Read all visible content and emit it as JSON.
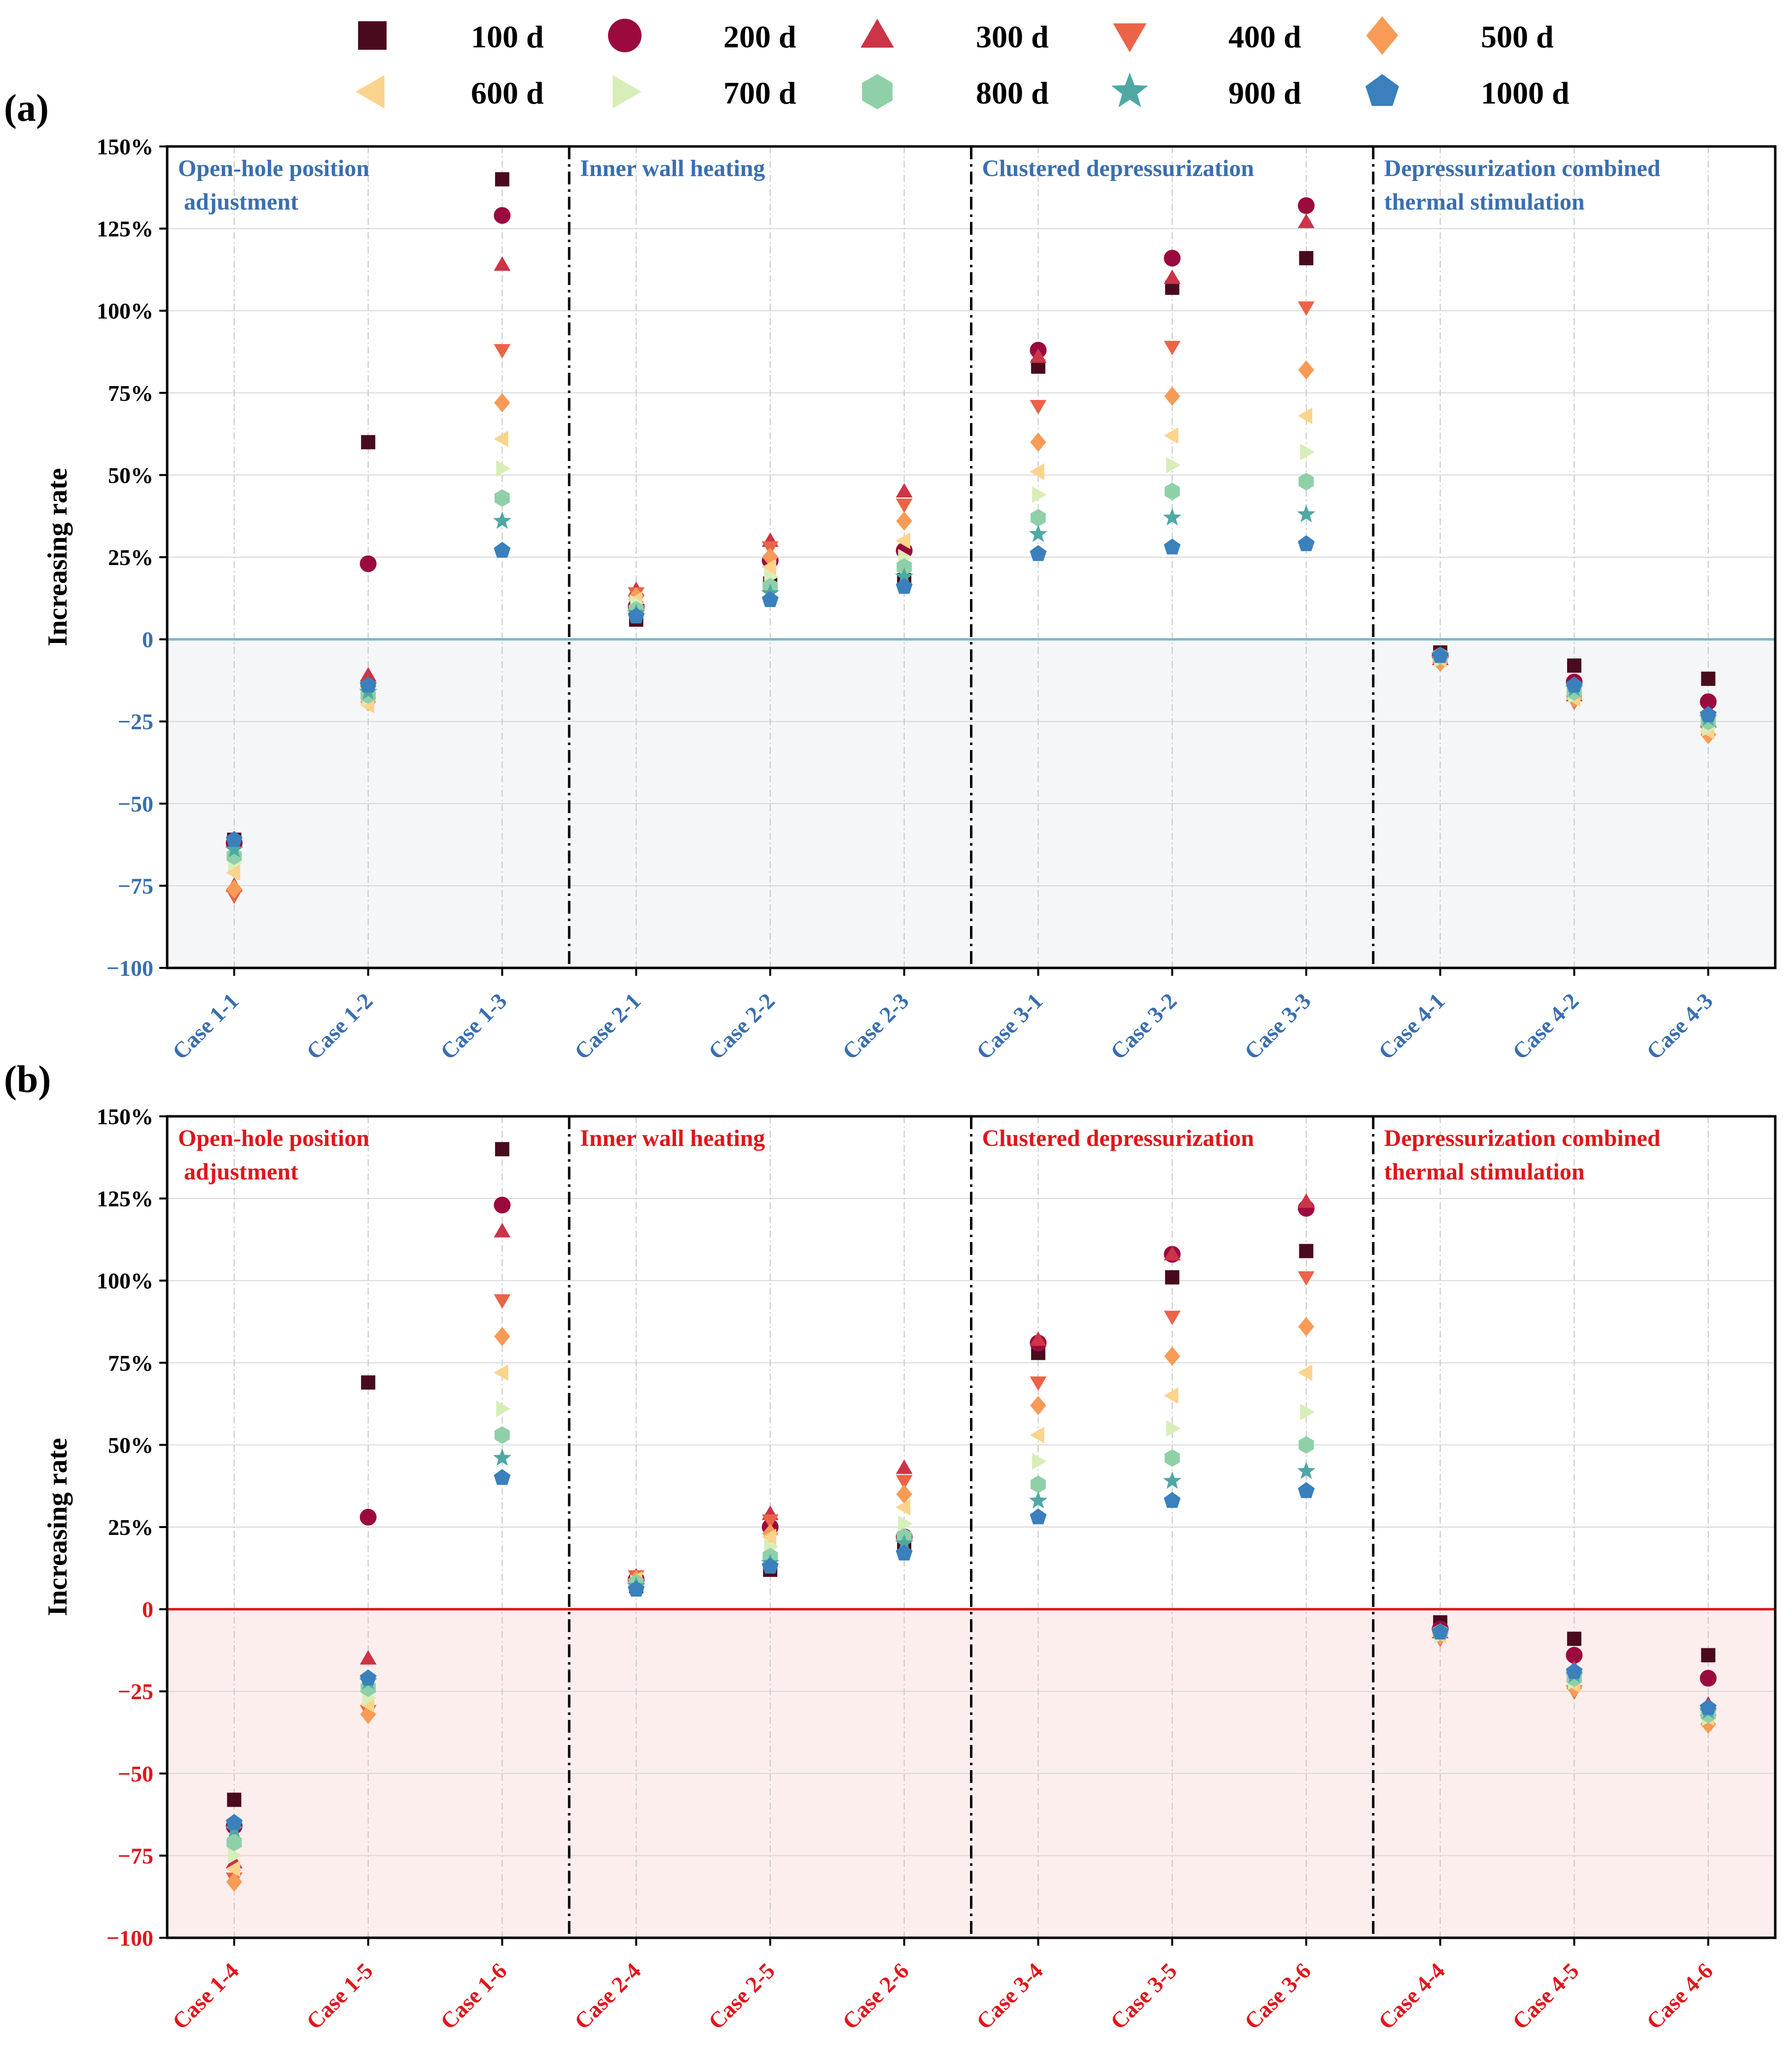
{
  "legend": [
    {
      "label": "100 d",
      "marker": "square",
      "color": "#4a0a1e"
    },
    {
      "label": "200 d",
      "marker": "circle",
      "color": "#9b0a3e"
    },
    {
      "label": "300 d",
      "marker": "triangle-up",
      "color": "#cc3447"
    },
    {
      "label": "400 d",
      "marker": "triangle-down",
      "color": "#ec6347"
    },
    {
      "label": "500 d",
      "marker": "diamond",
      "color": "#f79b56"
    },
    {
      "label": "600 d",
      "marker": "triangle-left",
      "color": "#fad48d"
    },
    {
      "label": "700 d",
      "marker": "triangle-right",
      "color": "#d8eeb8"
    },
    {
      "label": "800 d",
      "marker": "hexagon",
      "color": "#8fd0a8"
    },
    {
      "label": "900 d",
      "marker": "star",
      "color": "#4fa8a4"
    },
    {
      "label": "1000 d",
      "marker": "pentagon",
      "color": "#3a80bd"
    }
  ],
  "chart_data": [
    {
      "panel_label": "(a)",
      "type": "scatter",
      "ylabel": "Increasing rate",
      "ylim": [
        -100,
        150
      ],
      "yticks": [
        150,
        125,
        100,
        75,
        50,
        25,
        0,
        -25,
        -50,
        -75,
        -100
      ],
      "ytick_labels": [
        "150%",
        "125%",
        "100%",
        "75%",
        "50%",
        "25%",
        "0",
        "−25",
        "−50",
        "−75",
        "−100"
      ],
      "ytick_color_positive": "#000000",
      "ytick_color_negative": "#3a6fb0",
      "categories": [
        "Case 1-1",
        "Case 1-2",
        "Case 1-3",
        "Case 2-1",
        "Case 2-2",
        "Case 2-3",
        "Case 3-1",
        "Case 3-2",
        "Case 3-3",
        "Case 4-1",
        "Case 4-2",
        "Case 4-3"
      ],
      "xtick_color": "#3a6fb0",
      "section_color": "#3a6fb0",
      "zero_line_color": "#7ab8c8",
      "negative_fill": "#f4f6f8",
      "sections": [
        {
          "line1": "Open-hole position",
          "line2": " adjustment"
        },
        {
          "line1": "Inner wall heating",
          "line2": ""
        },
        {
          "line1": "Clustered depressurization",
          "line2": ""
        },
        {
          "line1": "Depressurization combined",
          "line2": "thermal stimulation"
        }
      ],
      "series": [
        {
          "name": "100 d",
          "values": [
            -61,
            60,
            140,
            6,
            17,
            18,
            83,
            107,
            116,
            -4,
            -8,
            -12
          ]
        },
        {
          "name": "200 d",
          "values": [
            -62,
            23,
            129,
            10,
            24,
            27,
            88,
            116,
            132,
            -5,
            -13,
            -19
          ]
        },
        {
          "name": "300 d",
          "values": [
            -75,
            -11,
            114,
            15,
            30,
            45,
            86,
            110,
            127,
            -6,
            -17,
            -25
          ]
        },
        {
          "name": "400 d",
          "values": [
            -78,
            -16,
            88,
            14,
            28,
            41,
            71,
            89,
            101,
            -7,
            -19,
            -28
          ]
        },
        {
          "name": "500 d",
          "values": [
            -76,
            -19,
            72,
            13,
            25,
            36,
            60,
            74,
            82,
            -7,
            -18,
            -29
          ]
        },
        {
          "name": "600 d",
          "values": [
            -71,
            -20,
            61,
            12,
            22,
            30,
            51,
            62,
            68,
            -6,
            -18,
            -28
          ]
        },
        {
          "name": "700 d",
          "values": [
            -68,
            -18,
            52,
            11,
            19,
            25,
            44,
            53,
            57,
            -6,
            -17,
            -27
          ]
        },
        {
          "name": "800 d",
          "values": [
            -66,
            -17,
            43,
            9,
            16,
            22,
            37,
            45,
            48,
            -5,
            -16,
            -25
          ]
        },
        {
          "name": "900 d",
          "values": [
            -64,
            -16,
            36,
            8,
            14,
            19,
            32,
            37,
            38,
            -5,
            -15,
            -24
          ]
        },
        {
          "name": "1000 d",
          "values": [
            -61,
            -14,
            27,
            7,
            12,
            16,
            26,
            28,
            29,
            -5,
            -14,
            -23
          ]
        }
      ]
    },
    {
      "panel_label": "(b)",
      "type": "scatter",
      "ylabel": "Increasing rate",
      "ylim": [
        -100,
        150
      ],
      "yticks": [
        150,
        125,
        100,
        75,
        50,
        25,
        0,
        -25,
        -50,
        -75,
        -100
      ],
      "ytick_labels": [
        "150%",
        "125%",
        "100%",
        "75%",
        "50%",
        "25%",
        "0",
        "−25",
        "−50",
        "−75",
        "−100"
      ],
      "ytick_color_positive": "#000000",
      "ytick_color_negative": "#e0161c",
      "categories": [
        "Case 1-4",
        "Case 1-5",
        "Case 1-6",
        "Case 2-4",
        "Case 2-5",
        "Case 2-6",
        "Case 3-4",
        "Case 3-5",
        "Case 3-6",
        "Case 4-4",
        "Case 4-5",
        "Case 4-6"
      ],
      "xtick_color": "#e0161c",
      "section_color": "#e0161c",
      "zero_line_color": "#e0161c",
      "negative_fill": "#fdeeee",
      "sections": [
        {
          "line1": "Open-hole position",
          "line2": " adjustment"
        },
        {
          "line1": "Inner wall heating",
          "line2": ""
        },
        {
          "line1": "Clustered depressurization",
          "line2": ""
        },
        {
          "line1": "Depressurization combined",
          "line2": "thermal stimulation"
        }
      ],
      "series": [
        {
          "name": "100 d",
          "values": [
            -58,
            69,
            140,
            7,
            12,
            19,
            78,
            101,
            109,
            -4,
            -9,
            -14
          ]
        },
        {
          "name": "200 d",
          "values": [
            -66,
            28,
            123,
            9,
            25,
            22,
            81,
            108,
            122,
            -6,
            -14,
            -21
          ]
        },
        {
          "name": "300 d",
          "values": [
            -77,
            -15,
            115,
            10,
            29,
            43,
            82,
            108,
            124,
            -7,
            -18,
            -29
          ]
        },
        {
          "name": "400 d",
          "values": [
            -82,
            -31,
            94,
            10,
            27,
            39,
            69,
            89,
            101,
            -9,
            -25,
            -34
          ]
        },
        {
          "name": "500 d",
          "values": [
            -83,
            -32,
            83,
            9,
            23,
            35,
            62,
            77,
            86,
            -8,
            -24,
            -35
          ]
        },
        {
          "name": "600 d",
          "values": [
            -79,
            -29,
            72,
            9,
            22,
            31,
            53,
            65,
            72,
            -8,
            -23,
            -33
          ]
        },
        {
          "name": "700 d",
          "values": [
            -75,
            -27,
            61,
            8,
            19,
            26,
            45,
            55,
            60,
            -8,
            -22,
            -33
          ]
        },
        {
          "name": "800 d",
          "values": [
            -71,
            -24,
            53,
            8,
            16,
            22,
            38,
            46,
            50,
            -7,
            -21,
            -32
          ]
        },
        {
          "name": "900 d",
          "values": [
            -67,
            -22,
            46,
            7,
            14,
            20,
            33,
            39,
            42,
            -7,
            -20,
            -31
          ]
        },
        {
          "name": "1000 d",
          "values": [
            -65,
            -21,
            40,
            6,
            13,
            17,
            28,
            33,
            36,
            -7,
            -19,
            -30
          ]
        }
      ]
    }
  ]
}
